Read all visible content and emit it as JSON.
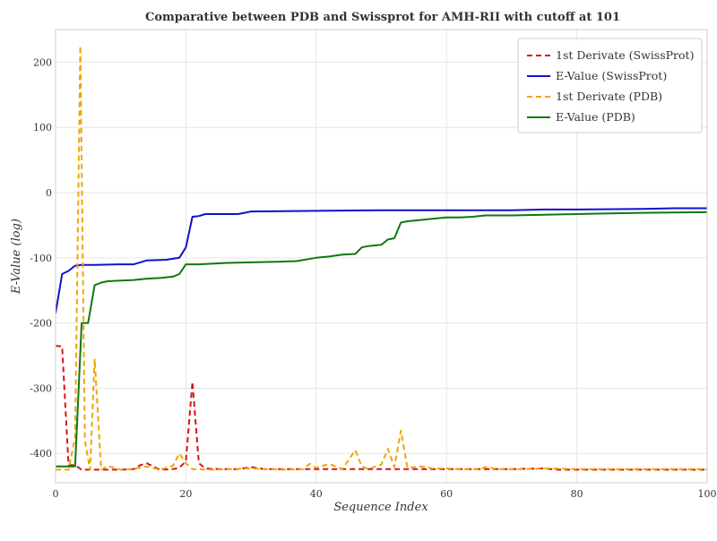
{
  "chart_data": {
    "type": "line",
    "title": "Comparative between PDB and Swissprot for AMH-RII with cutoff at 101",
    "xlabel": "Sequence Index",
    "ylabel": "E-Value (log)",
    "xlim": [
      0,
      100
    ],
    "ylim": [
      -445,
      250
    ],
    "xticks": [
      0,
      20,
      40,
      60,
      80,
      100
    ],
    "yticks": [
      -400,
      -300,
      -200,
      -100,
      0,
      100,
      200
    ],
    "ytick_labels": [
      "-400",
      "-300",
      "-200",
      "-100",
      "0",
      "100",
      "200"
    ],
    "grid": true,
    "legend_position": "top-right",
    "series": [
      {
        "name": "1st Derivate (SwissProt)",
        "color": "#dd1111",
        "dash": "dashed",
        "points": [
          [
            0,
            -235
          ],
          [
            1,
            -236
          ],
          [
            2,
            -418
          ],
          [
            3,
            -418
          ],
          [
            4,
            -425
          ],
          [
            5,
            -425
          ],
          [
            10,
            -425
          ],
          [
            12,
            -424
          ],
          [
            13,
            -418
          ],
          [
            14,
            -415
          ],
          [
            15,
            -420
          ],
          [
            16,
            -425
          ],
          [
            18,
            -424
          ],
          [
            19,
            -422
          ],
          [
            20,
            -412
          ],
          [
            21,
            -290
          ],
          [
            22,
            -415
          ],
          [
            23,
            -423
          ],
          [
            25,
            -424
          ],
          [
            28,
            -424
          ],
          [
            30,
            -421
          ],
          [
            32,
            -424
          ],
          [
            40,
            -424
          ],
          [
            50,
            -424
          ],
          [
            60,
            -424
          ],
          [
            70,
            -424
          ],
          [
            75,
            -423
          ],
          [
            77,
            -425
          ],
          [
            100,
            -425
          ]
        ]
      },
      {
        "name": "E-Value (SwissProt)",
        "color": "#1111cc",
        "dash": "solid",
        "points": [
          [
            0,
            -185
          ],
          [
            1,
            -125
          ],
          [
            2,
            -120
          ],
          [
            3,
            -112
          ],
          [
            4,
            -111
          ],
          [
            6,
            -111
          ],
          [
            10,
            -110
          ],
          [
            12,
            -110
          ],
          [
            13,
            -107
          ],
          [
            14,
            -104
          ],
          [
            17,
            -103
          ],
          [
            19,
            -100
          ],
          [
            20,
            -84
          ],
          [
            21,
            -37
          ],
          [
            22,
            -36
          ],
          [
            23,
            -33
          ],
          [
            28,
            -33
          ],
          [
            29,
            -31
          ],
          [
            30,
            -29
          ],
          [
            40,
            -28
          ],
          [
            50,
            -27
          ],
          [
            60,
            -27
          ],
          [
            70,
            -27
          ],
          [
            75,
            -26
          ],
          [
            80,
            -26
          ],
          [
            90,
            -25
          ],
          [
            95,
            -24
          ],
          [
            100,
            -24
          ]
        ]
      },
      {
        "name": "1st Derivate (PDB)",
        "color": "#f0a500",
        "dash": "dashed",
        "points": [
          [
            0,
            -425
          ],
          [
            2,
            -425
          ],
          [
            3,
            -375
          ],
          [
            3.8,
            225
          ],
          [
            4.5,
            -380
          ],
          [
            5.3,
            -425
          ],
          [
            6,
            -255
          ],
          [
            7,
            -425
          ],
          [
            8,
            -419
          ],
          [
            10,
            -425
          ],
          [
            12,
            -424
          ],
          [
            14,
            -420
          ],
          [
            16,
            -425
          ],
          [
            18,
            -419
          ],
          [
            19,
            -400
          ],
          [
            20,
            -415
          ],
          [
            21,
            -424
          ],
          [
            24,
            -425
          ],
          [
            30,
            -423
          ],
          [
            35,
            -425
          ],
          [
            38,
            -424
          ],
          [
            39,
            -416
          ],
          [
            40,
            -422
          ],
          [
            42,
            -416
          ],
          [
            44,
            -424
          ],
          [
            46,
            -395
          ],
          [
            47,
            -420
          ],
          [
            48,
            -424
          ],
          [
            50,
            -417
          ],
          [
            51,
            -393
          ],
          [
            52,
            -421
          ],
          [
            53,
            -365
          ],
          [
            54,
            -422
          ],
          [
            56,
            -420
          ],
          [
            58,
            -423
          ],
          [
            60,
            -423
          ],
          [
            62,
            -424
          ],
          [
            65,
            -424
          ],
          [
            66,
            -421
          ],
          [
            68,
            -424
          ],
          [
            72,
            -424
          ],
          [
            76,
            -423
          ],
          [
            80,
            -424
          ],
          [
            100,
            -424
          ]
        ]
      },
      {
        "name": "E-Value (PDB)",
        "color": "#117711",
        "dash": "solid",
        "points": [
          [
            0,
            -420
          ],
          [
            1,
            -420
          ],
          [
            2,
            -420
          ],
          [
            3,
            -420
          ],
          [
            4,
            -200
          ],
          [
            5,
            -200
          ],
          [
            6,
            -142
          ],
          [
            7,
            -138
          ],
          [
            8,
            -136
          ],
          [
            10,
            -135
          ],
          [
            12,
            -134
          ],
          [
            14,
            -132
          ],
          [
            16,
            -131
          ],
          [
            18,
            -129
          ],
          [
            19,
            -125
          ],
          [
            20,
            -110
          ],
          [
            22,
            -110
          ],
          [
            24,
            -109
          ],
          [
            26,
            -108
          ],
          [
            30,
            -107
          ],
          [
            34,
            -106
          ],
          [
            37,
            -105
          ],
          [
            40,
            -100
          ],
          [
            42,
            -98
          ],
          [
            44,
            -95
          ],
          [
            46,
            -94
          ],
          [
            47,
            -84
          ],
          [
            48,
            -82
          ],
          [
            50,
            -80
          ],
          [
            51,
            -72
          ],
          [
            52,
            -70
          ],
          [
            53,
            -46
          ],
          [
            54,
            -44
          ],
          [
            56,
            -42
          ],
          [
            58,
            -40
          ],
          [
            60,
            -38
          ],
          [
            62,
            -38
          ],
          [
            64,
            -37
          ],
          [
            66,
            -35
          ],
          [
            70,
            -35
          ],
          [
            75,
            -34
          ],
          [
            80,
            -33
          ],
          [
            85,
            -32
          ],
          [
            90,
            -31
          ],
          [
            100,
            -30
          ]
        ]
      }
    ]
  }
}
